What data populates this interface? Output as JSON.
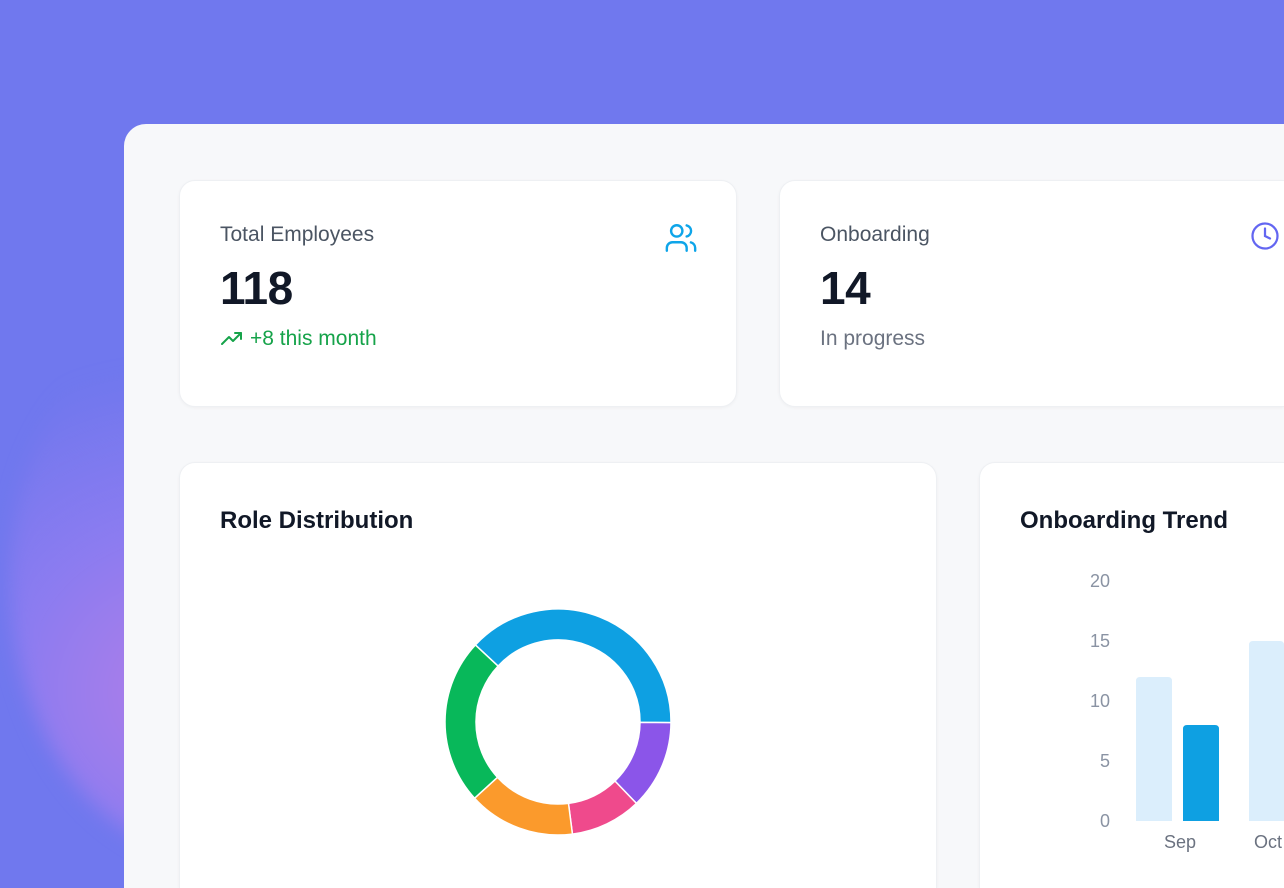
{
  "stats": [
    {
      "label": "Total Employees",
      "value": "118",
      "sub": "+8 this month",
      "icon": "users-icon",
      "icon_color": "#0ea5e9",
      "sub_color": "#16a34a"
    },
    {
      "label": "Onboarding",
      "value": "14",
      "sub": "In progress",
      "icon": "clock-icon",
      "icon_color": "#6366f1"
    }
  ],
  "role_chart": {
    "title": "Role Distribution"
  },
  "trend_chart": {
    "title": "Onboarding Trend"
  },
  "chart_data": [
    {
      "type": "pie",
      "donut": true,
      "slices": [
        {
          "value": 45,
          "color": "#0ea0e2"
        },
        {
          "value": 15,
          "color": "#8b55e9"
        },
        {
          "value": 12,
          "color": "#ef4a8c"
        },
        {
          "value": 18,
          "color": "#fb9a2c"
        },
        {
          "value": 28,
          "color": "#08b85a"
        }
      ]
    },
    {
      "type": "bar",
      "categories": [
        "Sep",
        "Oct"
      ],
      "ylim": [
        0,
        20
      ],
      "yticks": [
        0,
        5,
        10,
        15,
        20
      ],
      "grid": false,
      "series": [
        {
          "values": [
            12,
            15
          ],
          "color": "#dbeefc"
        },
        {
          "values": [
            8,
            null
          ],
          "color": "#0ea0e2"
        }
      ]
    }
  ]
}
